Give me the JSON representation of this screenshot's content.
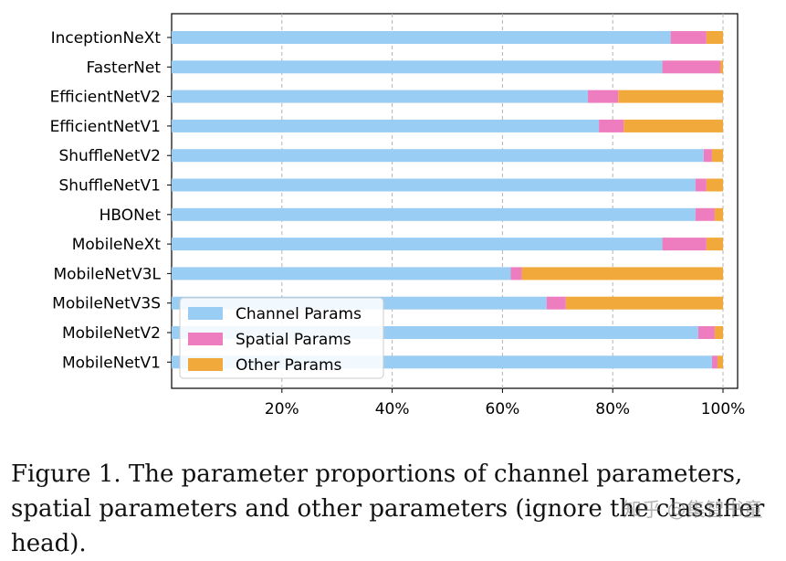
{
  "chart_data": {
    "type": "bar",
    "orientation": "horizontal",
    "stacked": true,
    "categories": [
      "InceptionNeXt",
      "FasterNet",
      "EfficientNetV2",
      "EfficientNetV1",
      "ShuffleNetV2",
      "ShuffleNetV1",
      "HBONet",
      "MobileNeXt",
      "MobileNetV3L",
      "MobileNetV3S",
      "MobileNetV2",
      "MobileNetV1"
    ],
    "series": [
      {
        "name": "Channel Params",
        "color": "#9ACDF3",
        "values": [
          90.5,
          89.0,
          75.5,
          77.5,
          96.5,
          95.0,
          95.0,
          89.0,
          61.5,
          68.0,
          95.5,
          98.0
        ]
      },
      {
        "name": "Spatial Params",
        "color": "#EE7DBF",
        "values": [
          6.5,
          10.5,
          5.5,
          4.5,
          1.5,
          2.0,
          3.5,
          8.0,
          2.0,
          3.5,
          3.0,
          1.0
        ]
      },
      {
        "name": "Other Params",
        "color": "#F2A93B",
        "values": [
          3.0,
          0.5,
          19.0,
          18.0,
          2.0,
          3.0,
          1.5,
          3.0,
          36.5,
          28.5,
          1.5,
          1.0
        ]
      }
    ],
    "xlim": [
      0,
      100
    ],
    "xticks": [
      20,
      40,
      60,
      80,
      100
    ],
    "xtick_labels": [
      "20%",
      "40%",
      "60%",
      "80%",
      "100%"
    ],
    "grid": "x-dashed",
    "legend_position": "lower-left"
  },
  "caption": "Figure 1. The parameter proportions of channel parameters, spatial parameters and other parameters (ignore the classifier head).",
  "watermark": "知乎 @集智书童"
}
